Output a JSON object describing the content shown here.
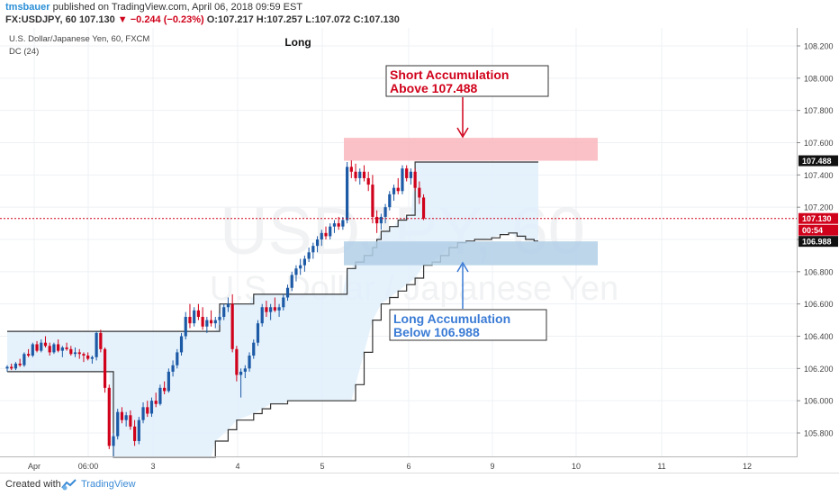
{
  "header": {
    "author": "tmsbauer",
    "published_text": "published on TradingView.com, April 06, 2018 09:59 EST",
    "symbol": "FX:USDJPY, 60",
    "last": "107.130",
    "change": "−0.244 (−0.23%)",
    "open": "O:107.217",
    "high": "H:107.257",
    "low": "L:107.072",
    "close": "C:107.130"
  },
  "legend": {
    "instrument": "U.S. Dollar/Japanese Yen, 60, FXCM",
    "indicator": "DC (24)"
  },
  "watermark": {
    "big": "USDJPY, 60",
    "small": "U.S. Dollar / Japanese Yen"
  },
  "footer": {
    "created_with": "Created with",
    "brand": "TradingView"
  },
  "chart_data": {
    "type": "candlestick",
    "title": "Long",
    "symbol": "USDJPY",
    "timeframe": "60",
    "price_range": [
      105.64,
      108.3
    ],
    "y_ticks": [
      "108.200",
      "108.000",
      "107.800",
      "107.600",
      "107.400",
      "107.200",
      "107.000",
      "106.800",
      "106.600",
      "106.400",
      "106.200",
      "106.000",
      "105.800"
    ],
    "x_ticks": [
      "Apr",
      "06:00",
      "3",
      "4",
      "5",
      "6",
      "9",
      "10",
      "11",
      "12"
    ],
    "current_price": "107.130",
    "countdown": "00:54",
    "colors": {
      "up": "#1d5aa6",
      "down": "#d0021b",
      "channel_fill": "#e1f0fb",
      "channel_line": "#333333",
      "short_zone": "#f9b7bd",
      "long_zone": "#b2cfe6",
      "short_text": "#d0021b",
      "long_text": "#3a7bd5"
    },
    "annotations": [
      {
        "id": "short",
        "label_line1": "Short Accumulation",
        "label_line2": "Above 107.488",
        "price_label": "107.488",
        "zone": [
          107.488,
          107.63
        ]
      },
      {
        "id": "long",
        "label_line1": "Long Accumulation",
        "label_line2": "Below 106.988",
        "price_label": "106.988",
        "zone": [
          106.84,
          106.988
        ]
      }
    ],
    "donchian_upper": [
      [
        0,
        106.43
      ],
      [
        0.9,
        106.43
      ],
      [
        1,
        106.43
      ],
      [
        2,
        106.43
      ],
      [
        3,
        106.43
      ],
      [
        4,
        106.43
      ],
      [
        5,
        106.43
      ],
      [
        6,
        106.43
      ],
      [
        7,
        106.43
      ],
      [
        8,
        106.43
      ],
      [
        9,
        106.43
      ],
      [
        10,
        106.43
      ],
      [
        11,
        106.43
      ],
      [
        12,
        106.43
      ],
      [
        13,
        106.43
      ],
      [
        14,
        106.43
      ],
      [
        15,
        106.43
      ],
      [
        16,
        106.43
      ],
      [
        17,
        106.43
      ],
      [
        18,
        106.43
      ],
      [
        19,
        106.43
      ],
      [
        20,
        106.43
      ],
      [
        21,
        106.43
      ],
      [
        22,
        106.43
      ],
      [
        23,
        106.43
      ],
      [
        24,
        106.43
      ],
      [
        25,
        106.43
      ],
      [
        26,
        106.43
      ],
      [
        27,
        106.43
      ],
      [
        28,
        106.43
      ],
      [
        29,
        106.43
      ],
      [
        30,
        106.43
      ],
      [
        31,
        106.43
      ],
      [
        32,
        106.43
      ],
      [
        33,
        106.43
      ],
      [
        34,
        106.43
      ],
      [
        35,
        106.43
      ],
      [
        36,
        106.43
      ],
      [
        37,
        106.43
      ],
      [
        38,
        106.43
      ],
      [
        39,
        106.43
      ],
      [
        40,
        106.43
      ],
      [
        41,
        106.43
      ],
      [
        42,
        106.43
      ],
      [
        43,
        106.43
      ],
      [
        44,
        106.43
      ],
      [
        45,
        106.43
      ],
      [
        46,
        106.43
      ],
      [
        47,
        106.43
      ],
      [
        48,
        106.43
      ],
      [
        49,
        106.43
      ],
      [
        50,
        106.6
      ],
      [
        51,
        106.6
      ],
      [
        52,
        106.6
      ],
      [
        53,
        106.6
      ],
      [
        54,
        106.6
      ],
      [
        55,
        106.6
      ],
      [
        56,
        106.6
      ],
      [
        57,
        106.6
      ],
      [
        58,
        106.66
      ],
      [
        59,
        106.66
      ],
      [
        60,
        106.66
      ],
      [
        61,
        106.66
      ],
      [
        62,
        106.66
      ],
      [
        63,
        106.66
      ],
      [
        64,
        106.66
      ],
      [
        65,
        106.66
      ],
      [
        66,
        106.66
      ],
      [
        67,
        106.66
      ],
      [
        68,
        106.66
      ],
      [
        69,
        106.66
      ],
      [
        70,
        106.66
      ],
      [
        71,
        106.66
      ],
      [
        72,
        106.66
      ],
      [
        73,
        106.66
      ],
      [
        74,
        106.66
      ],
      [
        75,
        106.66
      ],
      [
        76,
        106.66
      ],
      [
        77,
        106.66
      ],
      [
        78,
        106.66
      ],
      [
        79,
        106.66
      ],
      [
        80,
        106.82
      ],
      [
        81,
        106.82
      ],
      [
        82,
        106.86
      ],
      [
        83,
        106.86
      ],
      [
        84,
        106.9
      ],
      [
        85,
        106.9
      ],
      [
        86,
        106.95
      ],
      [
        87,
        107.0
      ],
      [
        88,
        107.05
      ],
      [
        89,
        107.05
      ],
      [
        90,
        107.08
      ],
      [
        91,
        107.08
      ],
      [
        92,
        107.12
      ],
      [
        93,
        107.12
      ],
      [
        94,
        107.15
      ],
      [
        95,
        107.15
      ],
      [
        96,
        107.48
      ],
      [
        97,
        107.48
      ],
      [
        98,
        107.48
      ],
      [
        99,
        107.48
      ],
      [
        100,
        107.48
      ],
      [
        101,
        107.48
      ],
      [
        102,
        107.48
      ],
      [
        103,
        107.48
      ],
      [
        104,
        107.48
      ],
      [
        105,
        107.48
      ],
      [
        106,
        107.48
      ],
      [
        107,
        107.48
      ],
      [
        108,
        107.48
      ],
      [
        109,
        107.48
      ],
      [
        110,
        107.48
      ],
      [
        111,
        107.48
      ],
      [
        112,
        107.48
      ],
      [
        113,
        107.48
      ],
      [
        114,
        107.48
      ],
      [
        115,
        107.48
      ],
      [
        116,
        107.48
      ],
      [
        117,
        107.48
      ],
      [
        118,
        107.48
      ],
      [
        119,
        107.48
      ],
      [
        120,
        107.48
      ],
      [
        121,
        107.48
      ],
      [
        122,
        107.48
      ],
      [
        123,
        107.48
      ],
      [
        124,
        107.48
      ],
      [
        125,
        107.48
      ]
    ],
    "donchian_lower": [
      [
        0,
        106.18
      ],
      [
        6,
        106.18
      ],
      [
        12,
        106.18
      ],
      [
        18,
        106.18
      ],
      [
        24,
        106.18
      ],
      [
        25,
        105.65
      ],
      [
        48,
        105.65
      ],
      [
        49,
        105.75
      ],
      [
        52,
        105.82
      ],
      [
        54,
        105.88
      ],
      [
        58,
        105.92
      ],
      [
        60,
        105.95
      ],
      [
        62,
        105.98
      ],
      [
        65,
        105.98
      ],
      [
        66,
        106.0
      ],
      [
        80,
        106.0
      ],
      [
        81,
        106.0
      ],
      [
        82,
        106.1
      ],
      [
        84,
        106.3
      ],
      [
        86,
        106.5
      ],
      [
        88,
        106.6
      ],
      [
        90,
        106.64
      ],
      [
        92,
        106.68
      ],
      [
        94,
        106.72
      ],
      [
        96,
        106.76
      ],
      [
        98,
        106.84
      ],
      [
        100,
        106.86
      ],
      [
        102,
        106.9
      ],
      [
        104,
        106.95
      ],
      [
        106,
        106.98
      ],
      [
        108,
        106.99
      ],
      [
        110,
        107.0
      ],
      [
        112,
        107.0
      ],
      [
        114,
        107.01
      ],
      [
        116,
        107.03
      ],
      [
        118,
        107.04
      ],
      [
        120,
        107.02
      ],
      [
        122,
        107.0
      ],
      [
        124,
        106.99
      ],
      [
        125,
        106.99
      ]
    ],
    "candles_ohlc": [
      [
        106.2,
        106.22,
        106.18,
        106.21
      ],
      [
        106.21,
        106.23,
        106.19,
        106.2
      ],
      [
        106.2,
        106.24,
        106.19,
        106.23
      ],
      [
        106.23,
        106.26,
        106.21,
        106.22
      ],
      [
        106.22,
        106.3,
        106.21,
        106.29
      ],
      [
        106.29,
        106.32,
        106.27,
        106.28
      ],
      [
        106.28,
        106.36,
        106.27,
        106.35
      ],
      [
        106.35,
        106.37,
        106.3,
        106.31
      ],
      [
        106.31,
        106.38,
        106.3,
        106.36
      ],
      [
        106.36,
        106.4,
        106.33,
        106.34
      ],
      [
        106.34,
        106.36,
        106.28,
        106.3
      ],
      [
        106.3,
        106.36,
        106.29,
        106.35
      ],
      [
        106.35,
        106.38,
        106.3,
        106.31
      ],
      [
        106.31,
        106.34,
        106.27,
        106.33
      ],
      [
        106.33,
        106.36,
        106.31,
        106.32
      ],
      [
        106.32,
        106.34,
        106.28,
        106.29
      ],
      [
        106.29,
        106.33,
        106.27,
        106.3
      ],
      [
        106.3,
        106.32,
        106.26,
        106.29
      ],
      [
        106.29,
        106.3,
        106.24,
        106.28
      ],
      [
        106.28,
        106.3,
        106.25,
        106.26
      ],
      [
        106.26,
        106.28,
        106.23,
        106.27
      ],
      [
        106.27,
        106.43,
        106.25,
        106.42
      ],
      [
        106.42,
        106.44,
        106.3,
        106.32
      ],
      [
        106.32,
        106.33,
        106.05,
        106.08
      ],
      [
        106.08,
        106.1,
        105.7,
        105.72
      ],
      [
        105.72,
        105.8,
        105.65,
        105.78
      ],
      [
        105.78,
        105.95,
        105.76,
        105.93
      ],
      [
        105.93,
        105.96,
        105.86,
        105.88
      ],
      [
        105.88,
        105.93,
        105.84,
        105.91
      ],
      [
        105.91,
        105.94,
        105.82,
        105.84
      ],
      [
        105.84,
        105.88,
        105.72,
        105.75
      ],
      [
        105.75,
        105.9,
        105.73,
        105.88
      ],
      [
        105.88,
        105.99,
        105.86,
        105.96
      ],
      [
        105.96,
        106.0,
        105.9,
        105.92
      ],
      [
        105.92,
        106.02,
        105.9,
        106.0
      ],
      [
        106.0,
        106.05,
        105.96,
        105.98
      ],
      [
        105.98,
        106.1,
        105.97,
        106.08
      ],
      [
        106.08,
        106.12,
        106.04,
        106.06
      ],
      [
        106.06,
        106.2,
        106.05,
        106.18
      ],
      [
        106.18,
        106.25,
        106.15,
        106.22
      ],
      [
        106.22,
        106.32,
        106.2,
        106.3
      ],
      [
        106.3,
        106.42,
        106.28,
        106.4
      ],
      [
        106.4,
        106.55,
        106.38,
        106.52
      ],
      [
        106.52,
        106.6,
        106.45,
        106.48
      ],
      [
        106.48,
        106.58,
        106.46,
        106.56
      ],
      [
        106.56,
        106.6,
        106.5,
        106.52
      ],
      [
        106.52,
        106.58,
        106.44,
        106.46
      ],
      [
        106.46,
        106.52,
        106.42,
        106.5
      ],
      [
        106.5,
        106.56,
        106.46,
        106.48
      ],
      [
        106.48,
        106.52,
        106.45,
        106.5
      ],
      [
        106.5,
        106.54,
        106.47,
        106.52
      ],
      [
        106.52,
        106.6,
        106.5,
        106.58
      ],
      [
        106.58,
        106.64,
        106.55,
        106.6
      ],
      [
        106.6,
        106.66,
        106.3,
        106.32
      ],
      [
        106.32,
        106.34,
        106.12,
        106.16
      ],
      [
        106.16,
        106.2,
        106.02,
        106.18
      ],
      [
        106.18,
        106.22,
        106.14,
        106.2
      ],
      [
        106.2,
        106.3,
        106.18,
        106.28
      ],
      [
        106.28,
        106.38,
        106.26,
        106.36
      ],
      [
        106.36,
        106.5,
        106.34,
        106.48
      ],
      [
        106.48,
        106.6,
        106.46,
        106.58
      ],
      [
        106.58,
        106.62,
        106.52,
        106.55
      ],
      [
        106.55,
        106.6,
        106.5,
        106.58
      ],
      [
        106.58,
        106.64,
        106.55,
        106.56
      ],
      [
        106.56,
        106.6,
        106.52,
        106.58
      ],
      [
        106.58,
        106.66,
        106.56,
        106.64
      ],
      [
        106.64,
        106.72,
        106.62,
        106.7
      ],
      [
        106.7,
        106.8,
        106.68,
        106.78
      ],
      [
        106.78,
        106.84,
        106.74,
        106.82
      ],
      [
        106.82,
        106.88,
        106.78,
        106.84
      ],
      [
        106.84,
        106.9,
        106.8,
        106.88
      ],
      [
        106.88,
        106.95,
        106.86,
        106.92
      ],
      [
        106.92,
        106.98,
        106.88,
        106.96
      ],
      [
        106.96,
        107.02,
        106.92,
        107.0
      ],
      [
        107.0,
        107.06,
        106.96,
        107.04
      ],
      [
        107.04,
        107.08,
        107.0,
        107.02
      ],
      [
        107.02,
        107.1,
        107.0,
        107.08
      ],
      [
        107.08,
        107.12,
        107.04,
        107.1
      ],
      [
        107.1,
        107.14,
        107.06,
        107.08
      ],
      [
        107.08,
        107.14,
        107.06,
        107.12
      ],
      [
        107.12,
        107.48,
        107.1,
        107.45
      ],
      [
        107.45,
        107.49,
        107.38,
        107.42
      ],
      [
        107.42,
        107.47,
        107.36,
        107.38
      ],
      [
        107.38,
        107.44,
        107.34,
        107.42
      ],
      [
        107.42,
        107.46,
        107.36,
        107.38
      ],
      [
        107.38,
        107.42,
        107.3,
        107.34
      ],
      [
        107.34,
        107.4,
        107.1,
        107.14
      ],
      [
        107.14,
        107.18,
        107.04,
        107.1
      ],
      [
        107.1,
        107.16,
        107.06,
        107.14
      ],
      [
        107.14,
        107.22,
        107.1,
        107.2
      ],
      [
        107.2,
        107.3,
        107.18,
        107.28
      ],
      [
        107.28,
        107.34,
        107.24,
        107.32
      ],
      [
        107.32,
        107.38,
        107.28,
        107.3
      ],
      [
        107.3,
        107.46,
        107.28,
        107.44
      ],
      [
        107.44,
        107.46,
        107.36,
        107.38
      ],
      [
        107.38,
        107.44,
        107.34,
        107.42
      ],
      [
        107.42,
        107.44,
        107.3,
        107.32
      ],
      [
        107.32,
        107.36,
        107.22,
        107.26
      ],
      [
        107.26,
        107.28,
        107.12,
        107.13
      ]
    ]
  }
}
